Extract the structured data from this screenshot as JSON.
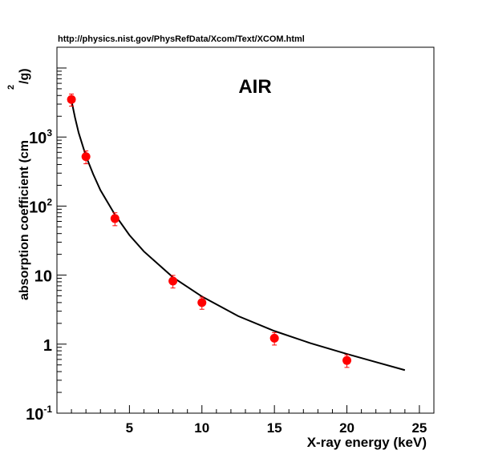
{
  "chart_data": {
    "type": "scatter",
    "title": "AIR",
    "source_note": "http://physics.nist.gov/PhysRefData/Xcom/Text/XCOM.html",
    "xlabel": "X-ray energy (keV)",
    "ylabel": "absorption coefficient (cm",
    "ylabel_sup": "2",
    "ylabel_tail": "/g)",
    "xlim": [
      0,
      26
    ],
    "ylim": [
      0.1,
      20000
    ],
    "y_scale": "log",
    "x_ticks": [
      5,
      10,
      15,
      20,
      25
    ],
    "x_tick_labels": [
      "5",
      "10",
      "15",
      "20",
      "25"
    ],
    "y_ticks": [
      {
        "value": 0.1,
        "base": "10",
        "exp": "-1"
      },
      {
        "value": 1,
        "base": "1",
        "exp": ""
      },
      {
        "value": 10,
        "base": "10",
        "exp": ""
      },
      {
        "value": 100,
        "base": "10",
        "exp": "2"
      },
      {
        "value": 1000,
        "base": "10",
        "exp": "3"
      }
    ],
    "grid": false,
    "colors": {
      "points": "#ff0000",
      "errorbars": "#ff0000",
      "curve": "#000000",
      "axes": "#000000"
    },
    "series": [
      {
        "type": "scatter",
        "x": [
          1,
          2,
          4,
          8,
          10,
          15,
          20
        ],
        "y": [
          3500,
          520,
          66,
          8.2,
          4.0,
          1.22,
          0.58
        ],
        "y_err": [
          700,
          110,
          14,
          1.7,
          0.8,
          0.25,
          0.12
        ]
      },
      {
        "type": "line",
        "x": [
          1,
          1.25,
          1.5,
          2,
          2.5,
          3,
          4,
          5,
          6,
          8,
          10,
          12.5,
          15,
          17.5,
          20,
          22,
          24
        ],
        "y": [
          3400,
          1900,
          1150,
          530,
          290,
          170,
          75,
          38,
          22,
          9.3,
          4.9,
          2.55,
          1.55,
          1.03,
          0.72,
          0.55,
          0.42
        ]
      }
    ]
  }
}
